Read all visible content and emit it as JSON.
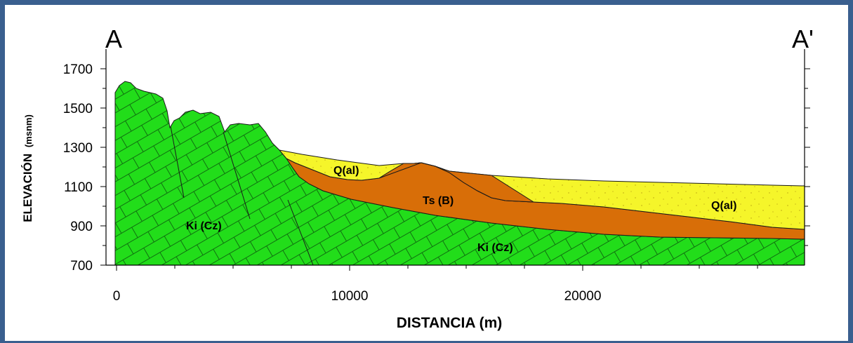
{
  "section": {
    "start_label": "A",
    "end_label": "A'"
  },
  "axes": {
    "x_title": "DISTANCIA (m)",
    "y_title_main": "ELEVACIÓN",
    "y_title_unit": "(msnm)",
    "x_ticks": [
      "0",
      "10000",
      "20000"
    ],
    "y_ticks": [
      "1700",
      "1500",
      "1300",
      "1100",
      "900",
      "700"
    ]
  },
  "units": {
    "q_al_left": "Q(al)",
    "q_al_right": "Q(al)",
    "ts_b": "Ts (B)",
    "ki_cz_left": "Ki (Cz)",
    "ki_cz_right": "Ki (Cz)"
  },
  "colors": {
    "ki_cz": "#22dd1a",
    "ts_b": "#d86e08",
    "q_al": "#f5f52a",
    "frame": "#3a5f8f"
  }
}
